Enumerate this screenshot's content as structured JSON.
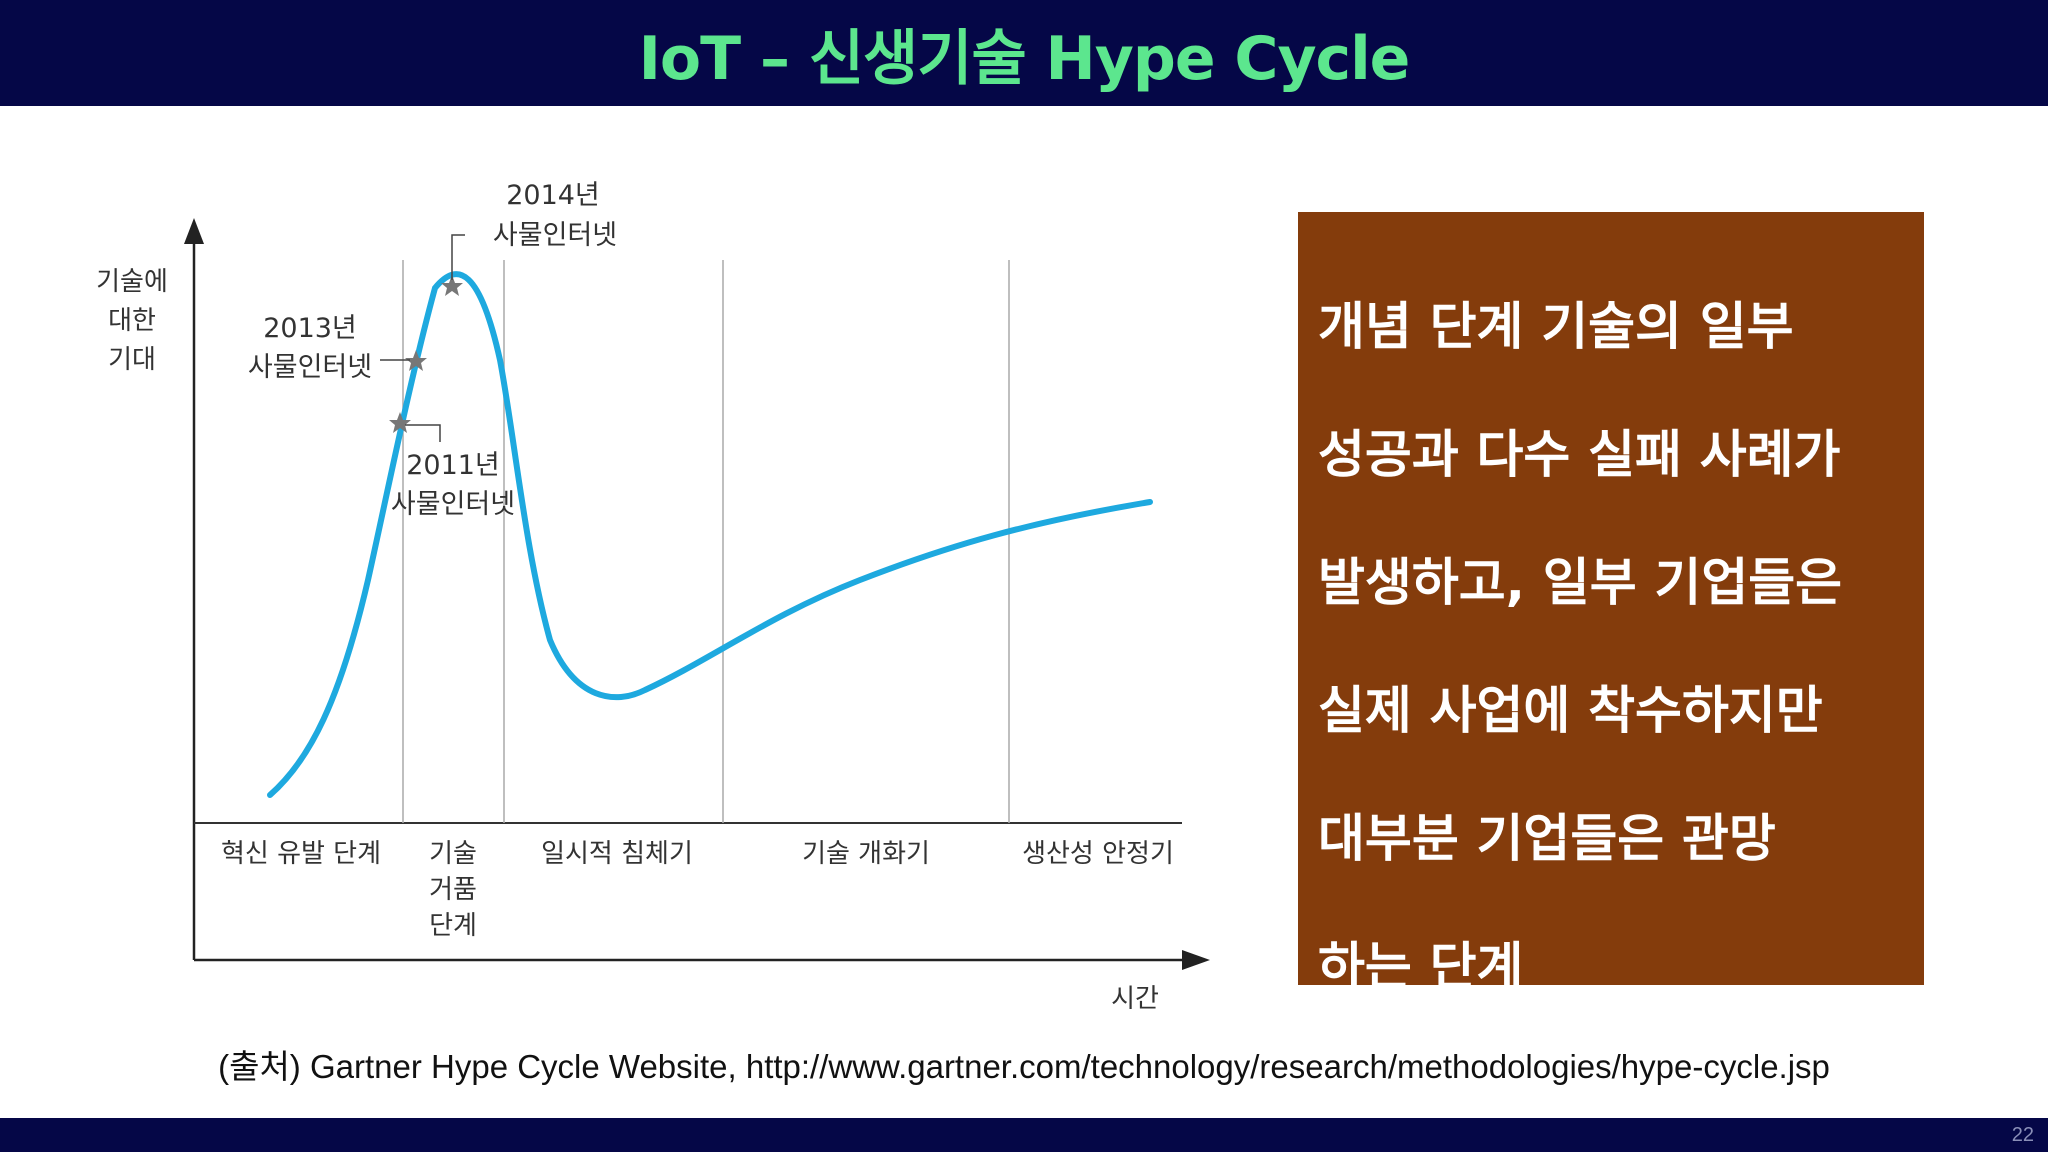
{
  "title": "IoT – 신생기술 Hype Cycle",
  "diagram": {
    "y_axis_label": [
      "기술에",
      "대한",
      "기대"
    ],
    "x_axis_label": "시간",
    "annotations": {
      "y2014": [
        "2014년",
        "사물인터넷"
      ],
      "y2013": [
        "2013년",
        "사물인터넷"
      ],
      "y2011": [
        "2011년",
        "사물인터넷"
      ]
    },
    "phases": {
      "innovation": "혁신 유발 단계",
      "peak": [
        "기술",
        "거품",
        "단계"
      ],
      "trough": "일시적 침체기",
      "slope": "기술 개화기",
      "plateau": "생산성 안정기"
    },
    "curve_color": "#1ea9df"
  },
  "text_box": {
    "lines": [
      "개념 단계 기술의 일부",
      "성공과 다수 실패 사례가",
      "발생하고, 일부 기업들은",
      "실제 사업에 착수하지만",
      "대부분 기업들은 관망",
      "하는 단계"
    ]
  },
  "source": "(출처) Gartner Hype Cycle Website, http://www.gartner.com/technology/research/methodologies/hype-cycle.jsp",
  "page_number": "22"
}
